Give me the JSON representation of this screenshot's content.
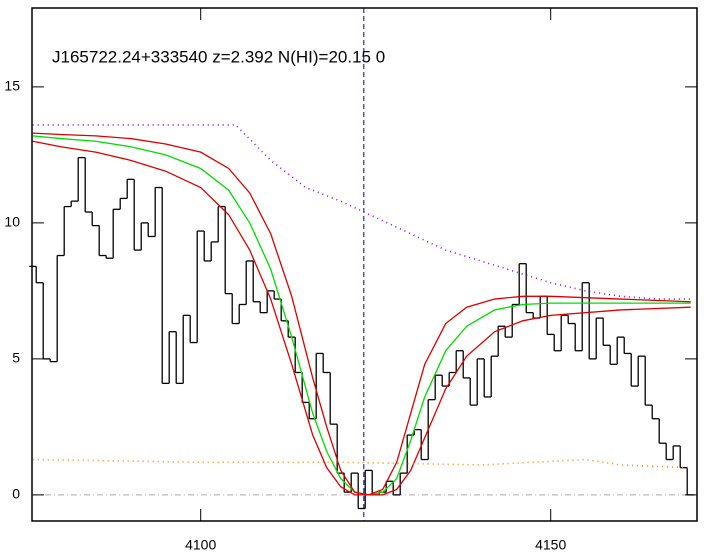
{
  "chart_data": {
    "type": "line",
    "title": "J165722.24+333540 z=2.392 N(HI)=20.15 0",
    "xlim": [
      4075.9,
      4170.9
    ],
    "ylim": [
      -0.96,
      17.9
    ],
    "xticks": [
      4100,
      4150
    ],
    "yticks": [
      0,
      5,
      10,
      15
    ],
    "series": [
      {
        "color": "#000000",
        "style": "step",
        "x": [
          4076,
          4077,
          4078,
          4079,
          4080,
          4081,
          4082,
          4083,
          4084,
          4085,
          4086,
          4087,
          4088,
          4089,
          4090,
          4091,
          4092,
          4093,
          4094,
          4095,
          4096,
          4097,
          4098,
          4099,
          4100,
          4101,
          4102,
          4103,
          4104,
          4105,
          4106,
          4107,
          4108,
          4109,
          4110,
          4111,
          4112,
          4113,
          4114,
          4115,
          4116,
          4117,
          4118,
          4119,
          4120,
          4121,
          4122,
          4123,
          4124,
          4125,
          4126,
          4127,
          4128,
          4129,
          4130,
          4131,
          4132,
          4133,
          4134,
          4135,
          4136,
          4137,
          4138,
          4139,
          4140,
          4141,
          4142,
          4143,
          4144,
          4145,
          4146,
          4147,
          4148,
          4149,
          4150,
          4151,
          4152,
          4153,
          4154,
          4155,
          4156,
          4157,
          4158,
          4159,
          4160,
          4161,
          4162,
          4163,
          4164,
          4165,
          4166,
          4167,
          4168,
          4169,
          4170
        ],
        "values": [
          8.4,
          7.8,
          5.0,
          4.9,
          8.8,
          10.6,
          10.8,
          12.4,
          10.4,
          9.9,
          8.8,
          8.7,
          10.5,
          10.9,
          11.6,
          9.0,
          10.0,
          9.5,
          11.3,
          4.1,
          6.0,
          4.1,
          6.6,
          5.6,
          9.7,
          8.6,
          9.3,
          10.6,
          7.4,
          6.3,
          7.0,
          8.6,
          7.1,
          6.7,
          7.5,
          7.2,
          6.4,
          5.8,
          4.5,
          3.4,
          2.8,
          5.2,
          4.5,
          2.6,
          0.8,
          0.1,
          0.8,
          -0.5,
          0.9,
          0.0,
          0.1,
          0.5,
          0.0,
          0.8,
          2.2,
          2.4,
          1.3,
          3.5,
          4.4,
          4.0,
          4.5,
          5.3,
          4.3,
          3.3,
          5.0,
          3.6,
          5.1,
          6.2,
          5.8,
          7.0,
          8.5,
          6.7,
          6.5,
          7.3,
          5.9,
          5.3,
          6.6,
          6.3,
          5.3,
          7.8,
          5.0,
          6.5,
          5.5,
          4.8,
          5.8,
          5.2,
          4.0,
          5.1,
          3.3,
          2.8,
          1.9,
          1.3,
          1.8,
          1.0,
          0.0
        ]
      },
      {
        "color": "#00dd00",
        "style": "solid",
        "x": [
          4076,
          4080,
          4085,
          4090,
          4095,
          4100,
          4104,
          4107,
          4110,
          4113,
          4116,
          4118,
          4120,
          4122,
          4124,
          4126,
          4128,
          4130,
          4132,
          4135,
          4138,
          4142,
          4146,
          4150,
          4160,
          4170
        ],
        "values": [
          13.2,
          13.1,
          13.0,
          12.8,
          12.5,
          12.0,
          11.2,
          10.0,
          8.3,
          5.8,
          3.0,
          1.6,
          0.6,
          0.1,
          0.0,
          0.1,
          0.6,
          2.0,
          3.6,
          5.3,
          6.2,
          6.8,
          7.0,
          7.05,
          7.05,
          7.05
        ]
      },
      {
        "color": "#dd0000",
        "style": "solid",
        "x": [
          4076,
          4080,
          4085,
          4090,
          4095,
          4100,
          4104,
          4107,
          4110,
          4113,
          4116,
          4118,
          4120,
          4122,
          4124,
          4126,
          4128,
          4130,
          4132,
          4135,
          4138,
          4142,
          4146,
          4150,
          4160,
          4170
        ],
        "values": [
          13.3,
          13.25,
          13.2,
          13.1,
          12.9,
          12.6,
          12.0,
          11.1,
          9.6,
          7.3,
          4.3,
          2.5,
          0.9,
          0.1,
          0.0,
          0.2,
          1.2,
          3.0,
          4.8,
          6.3,
          6.9,
          7.2,
          7.3,
          7.3,
          7.2,
          7.1
        ]
      },
      {
        "color": "#dd0000",
        "style": "solid",
        "x": [
          4076,
          4080,
          4085,
          4090,
          4095,
          4100,
          4104,
          4107,
          4110,
          4113,
          4116,
          4118,
          4120,
          4122,
          4124,
          4126,
          4128,
          4130,
          4132,
          4135,
          4138,
          4142,
          4146,
          4150,
          4160,
          4170
        ],
        "values": [
          13.0,
          12.8,
          12.6,
          12.3,
          11.9,
          11.3,
          10.3,
          9.0,
          7.2,
          4.8,
          2.2,
          1.0,
          0.3,
          0.0,
          0.0,
          0.0,
          0.2,
          0.9,
          2.1,
          3.9,
          5.1,
          6.0,
          6.4,
          6.6,
          6.8,
          6.9
        ]
      },
      {
        "color": "#9900ff",
        "style": "dotted",
        "x": [
          4076,
          4105,
          4110,
          4115,
          4120,
          4125,
          4130,
          4135,
          4140,
          4145,
          4150,
          4155,
          4160,
          4165,
          4170
        ],
        "values": [
          13.6,
          13.6,
          12.3,
          11.3,
          10.8,
          10.2,
          9.6,
          9.0,
          8.6,
          8.2,
          7.8,
          7.5,
          7.3,
          7.2,
          7.2
        ]
      },
      {
        "color": "#ff8800",
        "style": "dotted",
        "x": [
          4076,
          4100,
          4120,
          4140,
          4155,
          4160,
          4170
        ],
        "values": [
          1.3,
          1.2,
          1.2,
          1.1,
          1.3,
          1.1,
          1.0
        ]
      }
    ],
    "hline": {
      "value": 0,
      "color": "#aaaaaa"
    },
    "vline": {
      "value": 4123.3,
      "color": "#0000cc"
    }
  }
}
